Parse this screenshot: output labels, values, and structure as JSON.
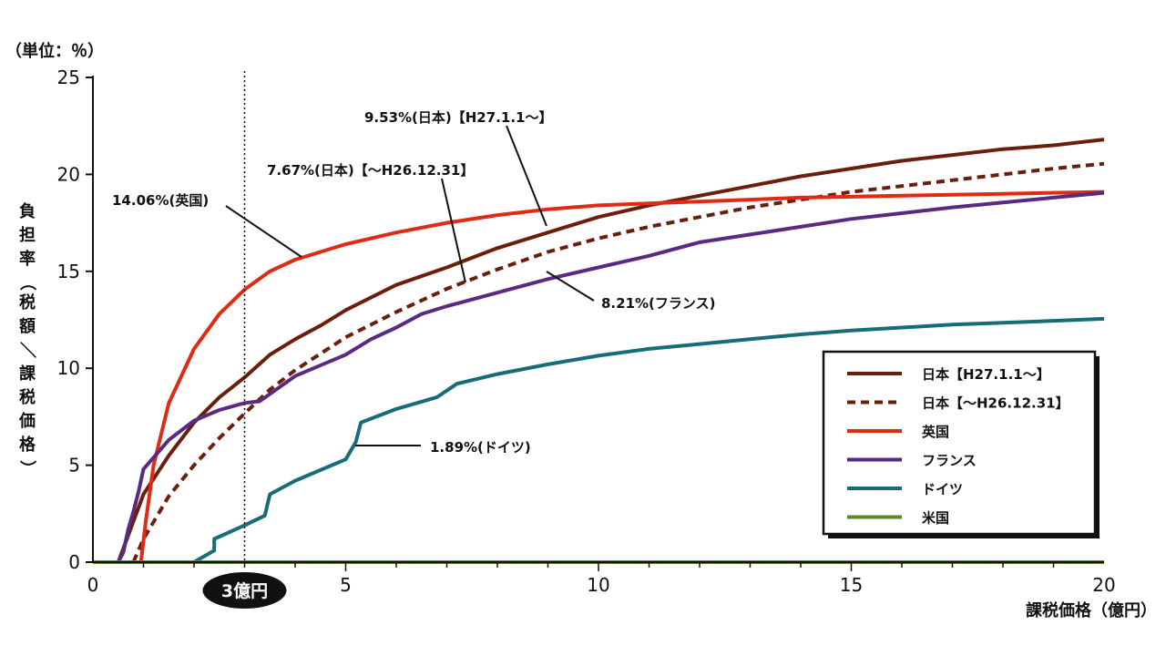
{
  "chart_data": {
    "type": "line",
    "unit_label": "（単位：％）",
    "ylabel": "負担率（税額／課税価格）",
    "xlabel": "課税価格（億円）",
    "xlim": [
      0,
      20
    ],
    "ylim": [
      0,
      25
    ],
    "x_ticks": [
      0,
      5,
      10,
      15,
      20
    ],
    "y_ticks": [
      0,
      5,
      10,
      15,
      20,
      25
    ],
    "reference_line": {
      "x": 3,
      "label": "3億円"
    },
    "legend_position": "bottom-right",
    "series": [
      {
        "name": "日本【H27.1.1～】",
        "color": "#6b1f0a",
        "dash": false,
        "points": [
          [
            0.5,
            0
          ],
          [
            1,
            3.5
          ],
          [
            1.5,
            5.5
          ],
          [
            2,
            7.2
          ],
          [
            2.5,
            8.5
          ],
          [
            3,
            9.53
          ],
          [
            3.5,
            10.7
          ],
          [
            4,
            11.5
          ],
          [
            4.5,
            12.2
          ],
          [
            5,
            13
          ],
          [
            6,
            14.3
          ],
          [
            7,
            15.2
          ],
          [
            8,
            16.2
          ],
          [
            9,
            17
          ],
          [
            10,
            17.8
          ],
          [
            11,
            18.4
          ],
          [
            12,
            18.9
          ],
          [
            13,
            19.4
          ],
          [
            14,
            19.9
          ],
          [
            15,
            20.3
          ],
          [
            16,
            20.7
          ],
          [
            17,
            21
          ],
          [
            18,
            21.3
          ],
          [
            19,
            21.5
          ],
          [
            20,
            21.8
          ]
        ]
      },
      {
        "name": "日本【～H26.12.31】",
        "color": "#6b1f0a",
        "dash": true,
        "points": [
          [
            0.8,
            0
          ],
          [
            1,
            1.2
          ],
          [
            1.5,
            3.4
          ],
          [
            2,
            5
          ],
          [
            2.5,
            6.4
          ],
          [
            3,
            7.67
          ],
          [
            3.5,
            8.9
          ],
          [
            4,
            9.9
          ],
          [
            5,
            11.6
          ],
          [
            6,
            12.9
          ],
          [
            7,
            14.1
          ],
          [
            8,
            15.1
          ],
          [
            9,
            16
          ],
          [
            10,
            16.7
          ],
          [
            11,
            17.3
          ],
          [
            12,
            17.8
          ],
          [
            13,
            18.3
          ],
          [
            14,
            18.7
          ],
          [
            15,
            19.1
          ],
          [
            16,
            19.4
          ],
          [
            17,
            19.7
          ],
          [
            18,
            20
          ],
          [
            19,
            20.3
          ],
          [
            20,
            20.55
          ]
        ]
      },
      {
        "name": "英国",
        "color": "#e02a14",
        "dash": false,
        "points": [
          [
            0.95,
            0
          ],
          [
            1.05,
            2.2
          ],
          [
            1.2,
            5
          ],
          [
            1.5,
            8.2
          ],
          [
            2,
            11
          ],
          [
            2.5,
            12.8
          ],
          [
            3,
            14.06
          ],
          [
            3.5,
            15
          ],
          [
            4,
            15.6
          ],
          [
            5,
            16.4
          ],
          [
            6,
            17
          ],
          [
            7,
            17.5
          ],
          [
            8,
            17.9
          ],
          [
            9,
            18.2
          ],
          [
            10,
            18.4
          ],
          [
            11,
            18.5
          ],
          [
            12,
            18.6
          ],
          [
            13,
            18.7
          ],
          [
            14,
            18.8
          ],
          [
            15,
            18.85
          ],
          [
            16,
            18.9
          ],
          [
            17,
            18.95
          ],
          [
            18,
            19
          ],
          [
            19,
            19.05
          ],
          [
            20,
            19.1
          ]
        ]
      },
      {
        "name": "フランス",
        "color": "#5a2a82",
        "dash": false,
        "points": [
          [
            0.5,
            0
          ],
          [
            0.6,
            0.5
          ],
          [
            0.7,
            1.7
          ],
          [
            0.8,
            2.6
          ],
          [
            0.9,
            3.6
          ],
          [
            1,
            4.8
          ],
          [
            1.5,
            6.3
          ],
          [
            2,
            7.3
          ],
          [
            2.5,
            7.85
          ],
          [
            3,
            8.21
          ],
          [
            3.3,
            8.3
          ],
          [
            4,
            9.6
          ],
          [
            5,
            10.7
          ],
          [
            5.5,
            11.5
          ],
          [
            6,
            12.1
          ],
          [
            6.5,
            12.8
          ],
          [
            7,
            13.2
          ],
          [
            8,
            13.9
          ],
          [
            9,
            14.6
          ],
          [
            10,
            15.2
          ],
          [
            11,
            15.8
          ],
          [
            12,
            16.5
          ],
          [
            13,
            16.9
          ],
          [
            14,
            17.3
          ],
          [
            15,
            17.7
          ],
          [
            16,
            18
          ],
          [
            17,
            18.3
          ],
          [
            18,
            18.55
          ],
          [
            19,
            18.8
          ],
          [
            20,
            19.05
          ]
        ]
      },
      {
        "name": "ドイツ",
        "color": "#166c78",
        "dash": false,
        "points": [
          [
            2,
            0
          ],
          [
            2.4,
            0.6
          ],
          [
            2.4,
            1.2
          ],
          [
            3,
            1.9
          ],
          [
            3.4,
            2.4
          ],
          [
            3.5,
            3.5
          ],
          [
            4,
            4.2
          ],
          [
            5,
            5.3
          ],
          [
            5.2,
            6.2
          ],
          [
            5.3,
            7.2
          ],
          [
            6,
            7.9
          ],
          [
            6.8,
            8.5
          ],
          [
            7.2,
            9.2
          ],
          [
            8,
            9.7
          ],
          [
            9,
            10.2
          ],
          [
            10,
            10.65
          ],
          [
            11,
            11
          ],
          [
            12,
            11.25
          ],
          [
            13,
            11.5
          ],
          [
            14,
            11.75
          ],
          [
            15,
            11.95
          ],
          [
            16,
            12.1
          ],
          [
            17,
            12.25
          ],
          [
            18,
            12.35
          ],
          [
            19,
            12.45
          ],
          [
            20,
            12.55
          ]
        ]
      },
      {
        "name": "米国",
        "color": "#5a8a2a",
        "dash": false,
        "points": [
          [
            0,
            0
          ],
          [
            20,
            0
          ]
        ]
      }
    ],
    "annotations": [
      {
        "text": "9.53%(日本)【H27.1.1～】"
      },
      {
        "text": "7.67%(日本)【～H26.12.31】"
      },
      {
        "text": "14.06%(英国)"
      },
      {
        "text": "8.21%(フランス)"
      },
      {
        "text": "1.89%(ドイツ)"
      }
    ]
  }
}
